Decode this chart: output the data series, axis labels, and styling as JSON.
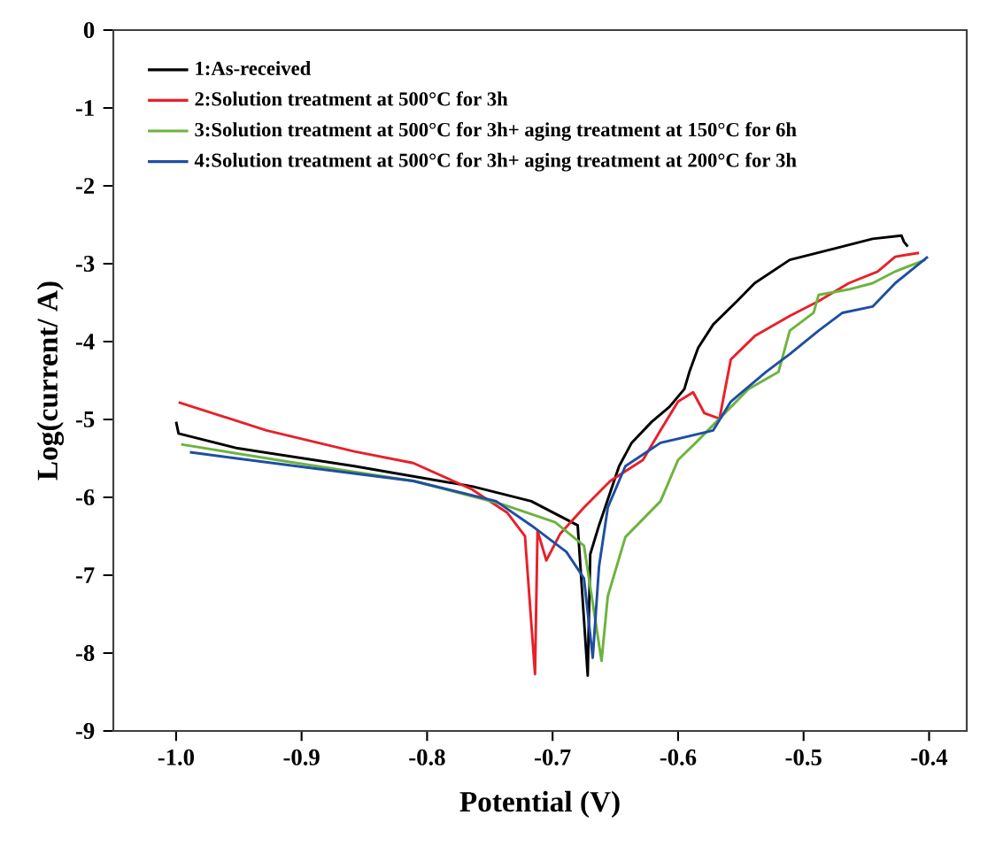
{
  "chart_data": {
    "type": "line",
    "xlabel": "Potential (V)",
    "ylabel": "Log(current/ A)",
    "xlim": [
      -1.05,
      -0.37
    ],
    "ylim": [
      -9,
      0
    ],
    "xticks": [
      {
        "value": -1.0,
        "label": "-1.0"
      },
      {
        "value": -0.9,
        "label": "-0.9"
      },
      {
        "value": -0.8,
        "label": "-0.8"
      },
      {
        "value": -0.7,
        "label": "-0.7"
      },
      {
        "value": -0.6,
        "label": "-0.6"
      },
      {
        "value": -0.5,
        "label": "-0.5"
      },
      {
        "value": -0.4,
        "label": "-0.4"
      }
    ],
    "yticks": [
      0,
      -1,
      -2,
      -3,
      -4,
      -5,
      -6,
      -7,
      -8,
      -9
    ],
    "legend": "top left",
    "grid": false,
    "series": [
      {
        "name": "1:As-received",
        "color": "#000000",
        "x": [
          -1.0,
          -0.998,
          -0.951,
          -0.858,
          -0.764,
          -0.717,
          -0.68,
          -0.672,
          -0.67,
          -0.663,
          -0.647,
          -0.637,
          -0.621,
          -0.607,
          -0.595,
          -0.591,
          -0.584,
          -0.572,
          -0.553,
          -0.539,
          -0.511,
          -0.474,
          -0.445,
          -0.422,
          -0.42,
          -0.417
        ],
        "values": [
          -5.03,
          -5.18,
          -5.37,
          -5.6,
          -5.86,
          -6.05,
          -6.36,
          -8.29,
          -6.73,
          -6.36,
          -5.6,
          -5.3,
          -5.03,
          -4.84,
          -4.61,
          -4.39,
          -4.08,
          -3.78,
          -3.48,
          -3.25,
          -2.95,
          -2.8,
          -2.68,
          -2.64,
          -2.72,
          -2.78
        ]
      },
      {
        "name": "2:Solution treatment at 500°C for 3h",
        "color": "#e8202a",
        "x": [
          -0.998,
          -0.928,
          -0.858,
          -0.811,
          -0.764,
          -0.736,
          -0.722,
          -0.714,
          -0.712,
          -0.705,
          -0.694,
          -0.675,
          -0.654,
          -0.628,
          -0.614,
          -0.6,
          -0.588,
          -0.579,
          -0.567,
          -0.558,
          -0.539,
          -0.511,
          -0.488,
          -0.464,
          -0.441,
          -0.427,
          -0.408
        ],
        "values": [
          -4.78,
          -5.14,
          -5.41,
          -5.56,
          -5.9,
          -6.2,
          -6.5,
          -8.27,
          -6.43,
          -6.81,
          -6.47,
          -6.13,
          -5.79,
          -5.52,
          -5.14,
          -4.77,
          -4.65,
          -4.92,
          -4.99,
          -4.23,
          -3.93,
          -3.67,
          -3.48,
          -3.25,
          -3.1,
          -2.91,
          -2.86
        ]
      },
      {
        "name": "3:Solution treatment at 500°C for 3h+ aging treatment at 150°C for 6h",
        "color": "#6db33f",
        "x": [
          -0.996,
          -0.904,
          -0.811,
          -0.74,
          -0.698,
          -0.675,
          -0.661,
          -0.656,
          -0.642,
          -0.614,
          -0.6,
          -0.586,
          -0.567,
          -0.544,
          -0.52,
          -0.511,
          -0.492,
          -0.488,
          -0.464,
          -0.445,
          -0.427,
          -0.403
        ],
        "values": [
          -5.32,
          -5.56,
          -5.79,
          -6.09,
          -6.32,
          -6.62,
          -8.1,
          -7.27,
          -6.51,
          -6.05,
          -5.52,
          -5.3,
          -4.99,
          -4.61,
          -4.39,
          -3.86,
          -3.63,
          -3.4,
          -3.33,
          -3.25,
          -3.1,
          -2.95
        ]
      },
      {
        "name": "4:Solution treatment at 500°C for 3h+ aging treatment at 200°C for 3h",
        "color": "#1f4ea3",
        "x": [
          -0.989,
          -0.904,
          -0.811,
          -0.745,
          -0.717,
          -0.689,
          -0.675,
          -0.668,
          -0.663,
          -0.656,
          -0.642,
          -0.614,
          -0.572,
          -0.558,
          -0.53,
          -0.511,
          -0.488,
          -0.469,
          -0.445,
          -0.427,
          -0.401
        ],
        "values": [
          -5.42,
          -5.6,
          -5.79,
          -6.05,
          -6.36,
          -6.7,
          -7.04,
          -8.06,
          -6.89,
          -6.13,
          -5.6,
          -5.3,
          -5.14,
          -4.77,
          -4.39,
          -4.16,
          -3.86,
          -3.63,
          -3.55,
          -3.25,
          -2.91
        ]
      }
    ]
  }
}
